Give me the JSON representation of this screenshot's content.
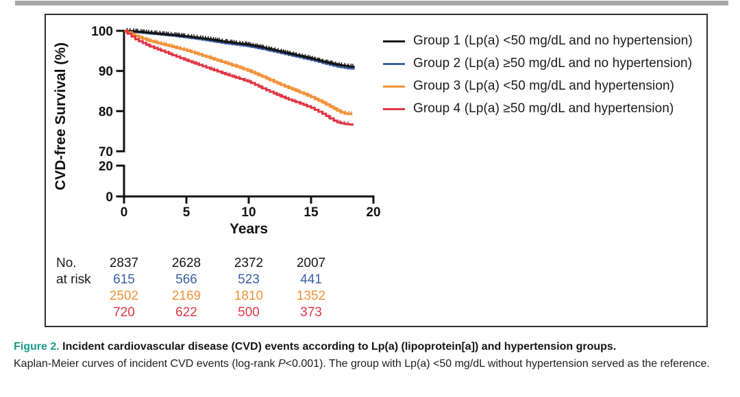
{
  "figure": {
    "y_axis": {
      "label": "CVD-free Survival (%)",
      "upper_ticks": [
        100,
        90,
        80,
        70
      ],
      "lower_ticks": [
        20,
        0
      ]
    },
    "x_axis": {
      "label": "Years",
      "ticks": [
        0,
        5,
        10,
        15,
        20
      ]
    },
    "at_risk_label_line1": "No.",
    "at_risk_label_line2": "at risk"
  },
  "caption": {
    "figure_label": "Figure 2.",
    "title": " Incident cardiovascular disease (CVD) events according to Lp(a) (lipoprotein[a]) and hypertension groups.",
    "body_pre": "Kaplan-Meier curves of incident CVD events (log-rank ",
    "body_italic": "P",
    "body_post": "<0.001). The group with Lp(a) <50 mg/dL without hypertension served as the reference.",
    "accent_color": "#189b8a"
  },
  "chart_data": {
    "type": "line",
    "subtype": "kaplan-meier-step",
    "title": "",
    "xlabel": "Years",
    "ylabel": "CVD-free Survival (%)",
    "xlim": [
      0,
      20
    ],
    "axis_break": true,
    "ylim_upper_segment": [
      70,
      100
    ],
    "ylim_lower_segment": [
      0,
      20
    ],
    "x_ticks": [
      0,
      5,
      10,
      15,
      20
    ],
    "y_ticks": [
      100,
      90,
      80,
      70,
      20,
      0
    ],
    "grid": false,
    "legend_position": "upper right",
    "annotations": [
      "log-rank P<0.001"
    ],
    "series": [
      {
        "name": "Group 1 (Lp(a) <50 mg/dL and no hypertension)",
        "color": "#141414",
        "points": [
          [
            0,
            100
          ],
          [
            1,
            99.8
          ],
          [
            2,
            99.5
          ],
          [
            3,
            99.2
          ],
          [
            4,
            98.9
          ],
          [
            5,
            98.6
          ],
          [
            6,
            98.2
          ],
          [
            7,
            97.8
          ],
          [
            8,
            97.3
          ],
          [
            9,
            96.9
          ],
          [
            10,
            96.5
          ],
          [
            11,
            95.9
          ],
          [
            12,
            95.2
          ],
          [
            13,
            94.5
          ],
          [
            14,
            93.8
          ],
          [
            15,
            93.1
          ],
          [
            16,
            92.3
          ],
          [
            17,
            91.6
          ],
          [
            18,
            91.1
          ],
          [
            18.5,
            91.0
          ]
        ]
      },
      {
        "name": "Group 2 (Lp(a) ≥50 mg/dL and no hypertension)",
        "color": "#3a5fa5",
        "points": [
          [
            0,
            100
          ],
          [
            1,
            99.6
          ],
          [
            2,
            99.3
          ],
          [
            3,
            99.0
          ],
          [
            4,
            98.7
          ],
          [
            5,
            98.3
          ],
          [
            6,
            97.9
          ],
          [
            7,
            97.4
          ],
          [
            8,
            96.9
          ],
          [
            9,
            96.5
          ],
          [
            10,
            96.1
          ],
          [
            11,
            95.5
          ],
          [
            12,
            94.8
          ],
          [
            13,
            94.1
          ],
          [
            14,
            93.4
          ],
          [
            15,
            92.7
          ],
          [
            16,
            91.9
          ],
          [
            17,
            91.1
          ],
          [
            18,
            90.6
          ],
          [
            18.5,
            90.5
          ]
        ]
      },
      {
        "name": "Group 3 (Lp(a) <50 mg/dL and hypertension)",
        "color": "#f2923a",
        "points": [
          [
            0,
            100
          ],
          [
            0.5,
            99.3
          ],
          [
            1,
            98.6
          ],
          [
            2,
            97.5
          ],
          [
            3,
            96.7
          ],
          [
            4,
            95.9
          ],
          [
            5,
            95.1
          ],
          [
            6,
            94.1
          ],
          [
            7,
            93.1
          ],
          [
            8,
            92.1
          ],
          [
            9,
            91.1
          ],
          [
            10,
            90.0
          ],
          [
            11,
            88.7
          ],
          [
            12,
            87.3
          ],
          [
            13,
            86.0
          ],
          [
            14,
            84.8
          ],
          [
            15,
            83.5
          ],
          [
            16,
            82.0
          ],
          [
            17,
            80.3
          ],
          [
            17.6,
            79.4
          ],
          [
            18.3,
            79.2
          ]
        ]
      },
      {
        "name": "Group 4 (Lp(a) ≥50 mg/dL and hypertension)",
        "color": "#df3644",
        "points": [
          [
            0,
            100
          ],
          [
            0.5,
            98.8
          ],
          [
            1,
            97.7
          ],
          [
            2,
            96.2
          ],
          [
            3,
            95.0
          ],
          [
            4,
            93.8
          ],
          [
            5,
            92.6
          ],
          [
            6,
            91.5
          ],
          [
            7,
            90.4
          ],
          [
            8,
            89.3
          ],
          [
            9,
            88.3
          ],
          [
            10,
            87.3
          ],
          [
            11,
            85.8
          ],
          [
            12,
            84.4
          ],
          [
            13,
            83.1
          ],
          [
            14,
            82.0
          ],
          [
            15,
            80.8
          ],
          [
            16,
            79.2
          ],
          [
            16.6,
            78.0
          ],
          [
            17,
            77.3
          ],
          [
            17.6,
            76.8
          ],
          [
            18.4,
            76.6
          ]
        ]
      }
    ],
    "at_risk_times": [
      0,
      5,
      10,
      15
    ],
    "at_risk": [
      {
        "group": "Group 1",
        "values": [
          "2837",
          "2628",
          "2372",
          "2007"
        ]
      },
      {
        "group": "Group 2",
        "values": [
          "615",
          "566",
          "523",
          "441"
        ]
      },
      {
        "group": "Group 3",
        "values": [
          "2502",
          "2169",
          "1810",
          "1352"
        ]
      },
      {
        "group": "Group 4",
        "values": [
          "720",
          "622",
          "500",
          "373"
        ]
      }
    ]
  }
}
